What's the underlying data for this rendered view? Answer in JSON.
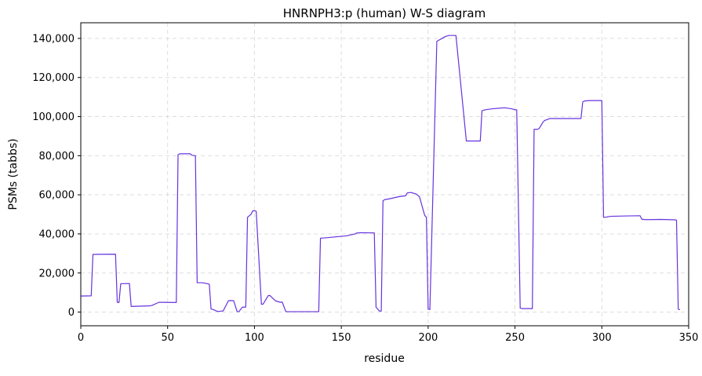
{
  "chart_data": {
    "type": "line",
    "title": "HNRNPH3:p (human) W-S diagram",
    "xlabel": "residue",
    "ylabel": "PSMs (tabbs)",
    "xlim": [
      0,
      350
    ],
    "ylim": [
      -7000,
      148000
    ],
    "grid": true,
    "x_ticks": [
      0,
      50,
      100,
      150,
      200,
      250,
      300,
      350
    ],
    "y_ticks": [
      0,
      20000,
      40000,
      60000,
      80000,
      100000,
      120000,
      140000
    ],
    "x_tick_labels": [
      "0",
      "50",
      "100",
      "150",
      "200",
      "250",
      "300",
      "350"
    ],
    "y_tick_labels": [
      "0",
      "20,000",
      "40,000",
      "60,000",
      "80,000",
      "100,000",
      "120,000",
      "140,000"
    ],
    "series": [
      {
        "color": "#6633dd",
        "x": [
          0,
          6,
          7,
          20,
          21,
          22,
          23,
          28,
          29,
          40,
          41,
          45,
          46,
          55,
          56,
          57,
          60,
          63,
          64,
          66,
          67,
          68,
          70,
          73,
          74,
          75,
          76,
          78,
          79,
          82,
          85,
          86,
          88,
          90,
          91,
          93,
          95,
          96,
          98,
          99,
          100,
          101,
          104,
          105,
          108,
          109,
          112,
          113,
          115,
          116,
          118,
          119,
          121,
          137,
          138,
          141,
          147,
          153,
          158,
          159,
          160,
          161,
          169,
          170,
          172,
          173,
          174,
          175,
          178,
          183,
          187,
          188,
          190,
          193,
          195,
          198,
          199,
          200,
          201,
          205,
          206,
          208,
          210,
          212,
          216,
          222,
          223,
          230,
          231,
          233,
          237,
          244,
          248,
          250,
          251,
          253,
          254,
          260,
          261,
          263,
          264,
          266,
          267,
          270,
          277,
          288,
          289,
          290,
          293,
          300,
          301,
          302,
          305,
          315,
          322,
          323,
          325,
          328,
          334,
          338,
          342,
          343,
          344,
          345
        ],
        "y": [
          8200,
          8300,
          29500,
          29600,
          5000,
          4900,
          14500,
          14600,
          2900,
          3200,
          3400,
          5000,
          5000,
          4900,
          80500,
          81000,
          81000,
          81000,
          80200,
          80000,
          15000,
          15000,
          15000,
          14500,
          14200,
          1500,
          1400,
          600,
          300,
          600,
          5800,
          5900,
          5800,
          300,
          200,
          2500,
          2600,
          48500,
          50000,
          51800,
          51800,
          51600,
          4000,
          4100,
          8500,
          8400,
          5800,
          5500,
          5000,
          5100,
          300,
          200,
          200,
          200,
          37800,
          38000,
          38500,
          39000,
          40000,
          40500,
          40500,
          40600,
          40500,
          2500,
          500,
          500,
          57000,
          57500,
          58000,
          59000,
          59500,
          61000,
          61200,
          60500,
          59000,
          49500,
          48500,
          1500,
          1300,
          138500,
          139000,
          140000,
          141000,
          141500,
          141500,
          87500,
          87500,
          87500,
          103000,
          103500,
          104000,
          104500,
          104000,
          103500,
          103500,
          2000,
          1800,
          1800,
          93500,
          93500,
          94000,
          97000,
          98000,
          99000,
          99000,
          99000,
          107500,
          108000,
          108200,
          108200,
          48500,
          48500,
          49000,
          49200,
          49300,
          47500,
          47300,
          47300,
          47400,
          47300,
          47200,
          47000,
          1500,
          1200
        ]
      }
    ]
  }
}
